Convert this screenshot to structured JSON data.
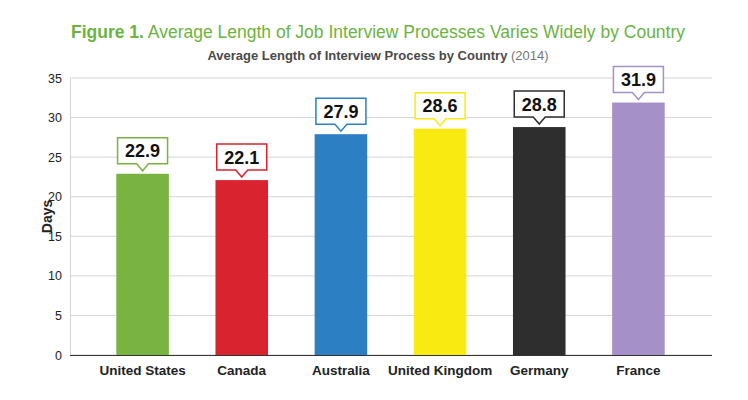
{
  "chart_data": {
    "type": "bar",
    "title": "Figure 1. Average Length of Job Interview Processes Varies Widely by Country",
    "subtitle": "Average Length of Interview Process by Country (2014)",
    "y_label": "Days",
    "categories": [
      "United States",
      "Canada",
      "Australia",
      "United Kingdom",
      "Germany",
      "France"
    ],
    "values": [
      22.9,
      22.1,
      27.9,
      28.6,
      28.8,
      31.9
    ],
    "colors": [
      "#79b442",
      "#d9232e",
      "#2c7fc3",
      "#f9ea12",
      "#2e2e2e",
      "#a590c8"
    ],
    "ylim": [
      0,
      35
    ],
    "yticks": [
      0,
      5,
      10,
      15,
      20,
      25,
      30,
      35
    ],
    "grid": true,
    "data_labels": true
  }
}
